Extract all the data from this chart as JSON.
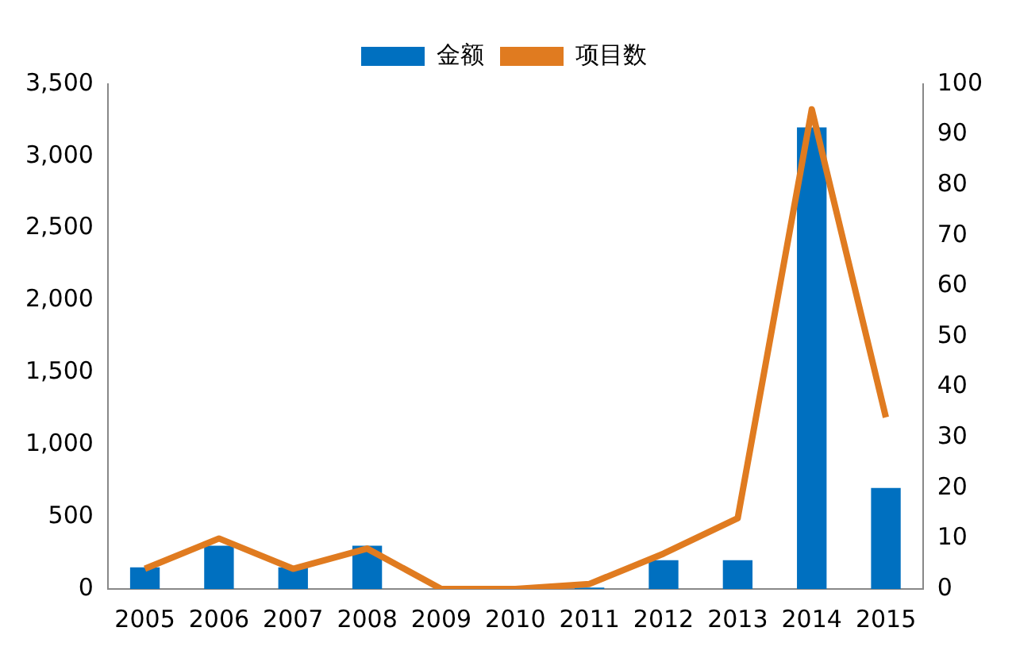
{
  "chart_data": {
    "type": "bar",
    "categories": [
      "2005",
      "2006",
      "2007",
      "2008",
      "2009",
      "2010",
      "2011",
      "2012",
      "2013",
      "2014",
      "2015"
    ],
    "series": [
      {
        "name": "金额",
        "color": "#0070c0",
        "values": [
          150,
          300,
          150,
          300,
          0,
          0,
          10,
          200,
          200,
          3200,
          700
        ]
      },
      {
        "name": "项目数",
        "type": "line",
        "axis": "y2",
        "color": "#e07b20",
        "values": [
          4,
          10,
          4,
          8,
          0,
          0,
          1,
          7,
          14,
          95,
          34
        ]
      }
    ],
    "ylim": [
      0,
      3500
    ],
    "yticks": [
      {
        "value": 0,
        "label": "0"
      },
      {
        "value": 500,
        "label": "500"
      },
      {
        "value": 1000,
        "label": "1,000"
      },
      {
        "value": 1500,
        "label": "1,500"
      },
      {
        "value": 2000,
        "label": "2,000"
      },
      {
        "value": 2500,
        "label": "2,500"
      },
      {
        "value": 3000,
        "label": "3,000"
      },
      {
        "value": 3500,
        "label": "3,500"
      }
    ],
    "y2lim": [
      0,
      100
    ],
    "y2ticks": [
      0,
      10,
      20,
      30,
      40,
      50,
      60,
      70,
      80,
      90,
      100
    ],
    "legend": "top",
    "grid": false
  }
}
